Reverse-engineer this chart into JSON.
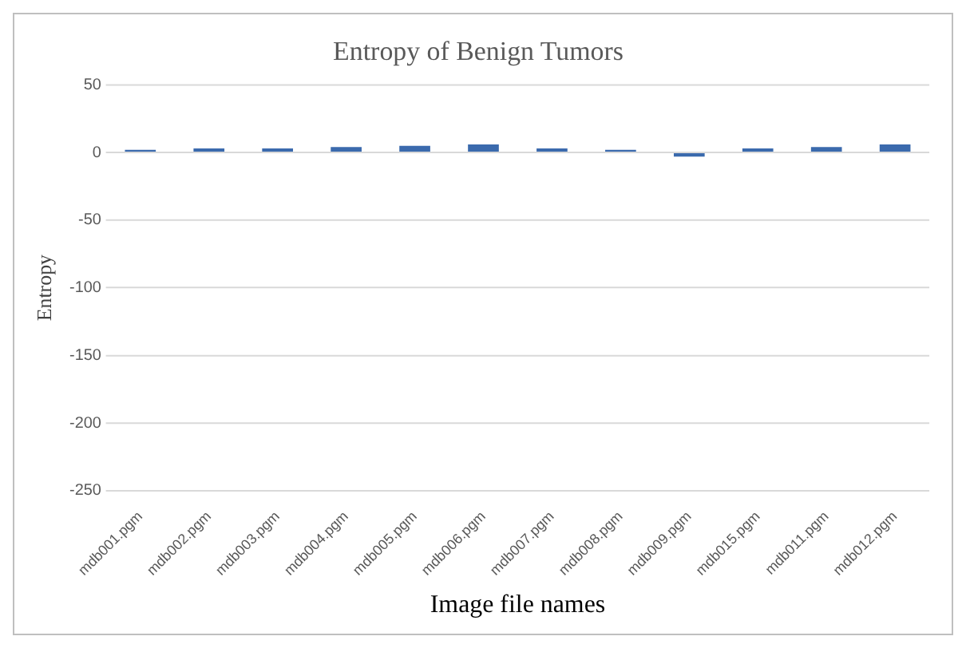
{
  "chart_data": {
    "type": "bar",
    "title": "Entropy of Benign Tumors",
    "xlabel": "Image file names",
    "ylabel": "Entropy",
    "categories": [
      "mdb001.pgm",
      "mdb002.pgm",
      "mdb003.pgm",
      "mdb004.pgm",
      "mdb005.pgm",
      "mdb006.pgm",
      "mdb007.pgm",
      "mdb008.pgm",
      "mdb009.pgm",
      "mdb015.pgm",
      "mdb011.pgm",
      "mdb012.pgm"
    ],
    "values": [
      2,
      3,
      3,
      4,
      5,
      6,
      3,
      2,
      -3,
      3,
      4,
      6
    ],
    "color": "#3b6aad",
    "ylim": [
      -250,
      50
    ],
    "yticks": [
      -250,
      -200,
      -150,
      -100,
      -50,
      0,
      50
    ],
    "grid": "y",
    "legend": false
  }
}
